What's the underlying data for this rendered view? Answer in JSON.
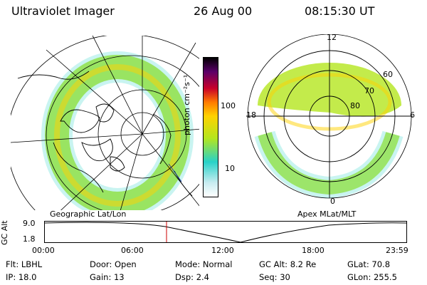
{
  "header": {
    "title": "Ultraviolet Imager",
    "date": "26 Aug 00",
    "time": "08:15:30 UT"
  },
  "colorbar": {
    "label": "photon cm⁻²s⁻¹",
    "ticks": [
      "100",
      "10"
    ]
  },
  "left_map": {
    "caption": "Geographic Lat/Lon"
  },
  "right_map": {
    "caption": "Apex MLat/MLT",
    "hour_labels": {
      "top": "12",
      "bottom": "0",
      "left": "18",
      "right": "6"
    },
    "lat_labels": [
      "60",
      "70",
      "80"
    ]
  },
  "altitude_plot": {
    "ylabel": "GC Alt",
    "yticks": [
      "9.0",
      "1.8"
    ],
    "xticks": [
      "00:00",
      "06:00",
      "12:00",
      "18:00",
      "23:59"
    ],
    "marker_time": "08:15"
  },
  "info": {
    "row1": [
      {
        "label": "Flt:",
        "value": "LBHL"
      },
      {
        "label": "Door:",
        "value": "Open"
      },
      {
        "label": "Mode:",
        "value": "Normal"
      },
      {
        "label": "GC Alt:",
        "value": "8.2 Re"
      },
      {
        "label": "GLat:",
        "value": "70.8"
      }
    ],
    "row2": [
      {
        "label": "IP:",
        "value": "18.0"
      },
      {
        "label": "Gain:",
        "value": "13"
      },
      {
        "label": "Dsp:",
        "value": "2.4"
      },
      {
        "label": "Seq:",
        "value": "30"
      },
      {
        "label": "GLon:",
        "value": "255.5"
      }
    ]
  },
  "colors": {
    "aurora_high": "#ffd200",
    "aurora_mid": "#b4e61e",
    "aurora_low": "#28d2c8",
    "marker": "#cc0000",
    "coast": "#2040a0"
  }
}
